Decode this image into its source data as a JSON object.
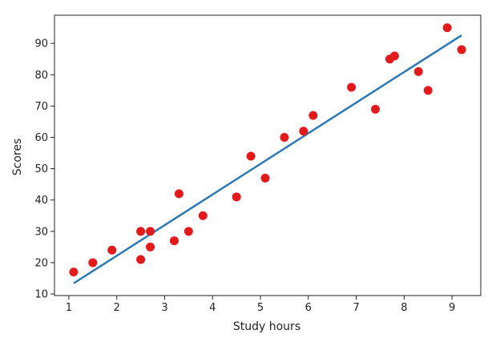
{
  "chart_data": {
    "type": "scatter",
    "title": "",
    "xlabel": "Study hours",
    "ylabel": "Scores",
    "xlim": [
      0.7,
      9.6
    ],
    "ylim": [
      9.5,
      99
    ],
    "xticks": [
      1,
      2,
      3,
      4,
      5,
      6,
      7,
      8,
      9
    ],
    "yticks": [
      10,
      20,
      30,
      40,
      50,
      60,
      70,
      80,
      90
    ],
    "grid": false,
    "legend": "none",
    "colors": {
      "points": "#e31a1c",
      "line": "#2878b5",
      "axes": "#222222"
    },
    "series": [
      {
        "kind": "scatter",
        "points": [
          [
            1.1,
            17
          ],
          [
            1.5,
            20
          ],
          [
            1.9,
            24
          ],
          [
            2.5,
            21
          ],
          [
            2.5,
            30
          ],
          [
            2.7,
            25
          ],
          [
            2.7,
            30
          ],
          [
            3.2,
            27
          ],
          [
            3.3,
            42
          ],
          [
            3.5,
            30
          ],
          [
            3.8,
            35
          ],
          [
            4.5,
            41
          ],
          [
            4.8,
            54
          ],
          [
            5.1,
            47
          ],
          [
            5.5,
            60
          ],
          [
            5.9,
            62
          ],
          [
            6.1,
            67
          ],
          [
            6.9,
            76
          ],
          [
            7.4,
            69
          ],
          [
            7.7,
            85
          ],
          [
            7.8,
            86
          ],
          [
            8.3,
            81
          ],
          [
            8.5,
            75
          ],
          [
            8.9,
            95
          ],
          [
            9.2,
            88
          ]
        ]
      },
      {
        "kind": "line",
        "points": [
          [
            1.1,
            13.4
          ],
          [
            9.2,
            92.6
          ]
        ]
      }
    ]
  }
}
